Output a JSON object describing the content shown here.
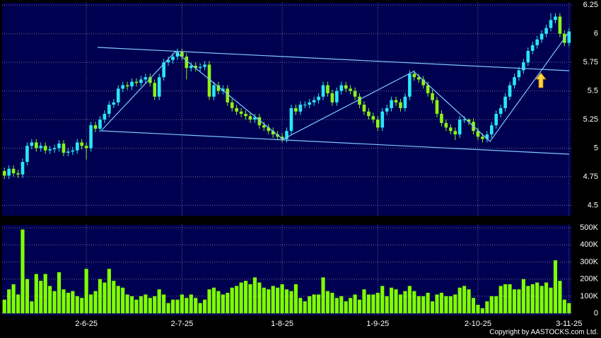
{
  "chart_data": [
    {
      "type": "candlestick",
      "categories": [
        null,
        null,
        null,
        null,
        null,
        null,
        null,
        null,
        null,
        null,
        null,
        null,
        null,
        null,
        null,
        null,
        null,
        null,
        "2-6-25",
        null,
        null,
        null,
        null,
        null,
        null,
        null,
        null,
        null,
        null,
        null,
        null,
        null,
        null,
        null,
        null,
        null,
        null,
        null,
        null,
        "2-7-25",
        null,
        null,
        null,
        null,
        null,
        null,
        null,
        null,
        null,
        null,
        null,
        null,
        null,
        null,
        null,
        null,
        null,
        null,
        null,
        null,
        null,
        "1-8-25",
        null,
        null,
        null,
        null,
        null,
        null,
        null,
        null,
        null,
        null,
        null,
        null,
        null,
        null,
        null,
        null,
        null,
        null,
        null,
        null,
        "1-9-25",
        null,
        null,
        null,
        null,
        null,
        null,
        null,
        null,
        null,
        null,
        null,
        null,
        null,
        null,
        null,
        null,
        null,
        null,
        null,
        null,
        null,
        "2-10-25",
        null,
        null,
        null,
        null,
        null,
        null,
        null,
        null,
        null,
        null,
        null,
        null,
        null,
        null,
        null,
        null,
        null,
        null,
        null,
        "3-11-25"
      ],
      "open": [
        4.8,
        4.76,
        4.82,
        4.78,
        4.77,
        4.88,
        5.02,
        5.05,
        5.0,
        5.02,
        4.98,
        4.99,
        5.0,
        5.04,
        4.96,
        4.97,
        4.98,
        5.05,
        5.02,
        5.0,
        5.2,
        5.17,
        5.25,
        5.3,
        5.38,
        5.4,
        5.52,
        5.55,
        5.54,
        5.58,
        5.57,
        5.6,
        5.62,
        5.57,
        5.45,
        5.62,
        5.75,
        5.77,
        5.8,
        5.84,
        5.8,
        5.7,
        5.72,
        5.7,
        5.71,
        5.73,
        5.45,
        5.55,
        5.5,
        5.52,
        5.4,
        5.35,
        5.32,
        5.3,
        5.28,
        5.25,
        5.27,
        5.2,
        5.18,
        5.15,
        5.12,
        5.1,
        5.08,
        5.15,
        5.35,
        5.32,
        5.38,
        5.38,
        5.4,
        5.42,
        5.45,
        5.55,
        5.48,
        5.4,
        5.5,
        5.55,
        5.52,
        5.5,
        5.45,
        5.38,
        5.32,
        5.28,
        5.25,
        5.18,
        5.32,
        5.35,
        5.42,
        5.4,
        5.35,
        5.45,
        5.65,
        5.62,
        5.6,
        5.55,
        5.48,
        5.42,
        5.3,
        5.22,
        5.18,
        5.15,
        5.12,
        5.25,
        5.25,
        5.23,
        5.15,
        5.1,
        5.08,
        5.12,
        5.2,
        5.3,
        5.35,
        5.45,
        5.55,
        5.62,
        5.68,
        5.75,
        5.85,
        5.9,
        5.95,
        6.0,
        6.05,
        6.12,
        6.15,
        6.0,
        5.92
      ],
      "high": [
        4.83,
        4.85,
        4.85,
        4.81,
        4.91,
        5.05,
        5.08,
        5.08,
        5.05,
        5.05,
        5.02,
        5.03,
        5.07,
        5.07,
        5.0,
        5.01,
        5.08,
        5.08,
        5.05,
        5.23,
        5.23,
        5.28,
        5.33,
        5.41,
        5.43,
        5.55,
        5.58,
        5.58,
        5.61,
        5.61,
        5.63,
        5.65,
        5.65,
        5.6,
        5.65,
        5.78,
        5.8,
        5.83,
        5.87,
        5.87,
        5.83,
        5.75,
        5.75,
        5.74,
        5.76,
        5.76,
        5.58,
        5.58,
        5.55,
        5.55,
        5.43,
        5.38,
        5.35,
        5.33,
        5.31,
        5.3,
        5.3,
        5.23,
        5.21,
        5.18,
        5.15,
        5.13,
        5.18,
        5.38,
        5.38,
        5.41,
        5.41,
        5.43,
        5.45,
        5.48,
        5.58,
        5.58,
        5.51,
        5.53,
        5.58,
        5.58,
        5.55,
        5.53,
        5.48,
        5.41,
        5.35,
        5.31,
        5.28,
        5.35,
        5.38,
        5.45,
        5.45,
        5.43,
        5.48,
        5.68,
        5.68,
        5.65,
        5.63,
        5.58,
        5.51,
        5.45,
        5.33,
        5.25,
        5.21,
        5.18,
        5.28,
        5.28,
        5.26,
        5.26,
        5.18,
        5.13,
        5.15,
        5.23,
        5.33,
        5.38,
        5.48,
        5.58,
        5.65,
        5.71,
        5.78,
        5.88,
        5.93,
        5.98,
        6.03,
        6.08,
        6.18,
        6.18,
        6.18,
        6.03,
        6.05
      ],
      "low": [
        4.73,
        4.73,
        4.75,
        4.74,
        4.74,
        4.85,
        4.99,
        4.97,
        4.97,
        4.95,
        4.95,
        4.96,
        4.97,
        4.93,
        4.93,
        4.94,
        4.95,
        4.99,
        4.9,
        4.97,
        5.14,
        5.14,
        5.22,
        5.27,
        5.35,
        5.37,
        5.49,
        5.51,
        5.51,
        5.54,
        5.54,
        5.57,
        5.54,
        5.42,
        5.42,
        5.59,
        5.72,
        5.74,
        5.77,
        5.77,
        5.6,
        5.67,
        5.67,
        5.67,
        5.68,
        5.42,
        5.42,
        5.47,
        5.47,
        5.37,
        5.32,
        5.29,
        5.27,
        5.25,
        5.22,
        5.22,
        5.17,
        5.15,
        5.12,
        5.09,
        5.07,
        5.05,
        5.05,
        5.12,
        5.29,
        5.29,
        5.35,
        5.35,
        5.37,
        5.39,
        5.42,
        5.45,
        5.37,
        5.37,
        5.47,
        5.49,
        5.47,
        5.42,
        5.35,
        5.29,
        5.25,
        5.22,
        5.15,
        5.15,
        5.29,
        5.32,
        5.37,
        5.32,
        5.32,
        5.42,
        5.59,
        5.57,
        5.52,
        5.45,
        5.39,
        5.27,
        5.19,
        5.15,
        5.12,
        5.07,
        5.09,
        5.22,
        5.2,
        5.12,
        5.07,
        5.05,
        5.05,
        5.09,
        5.17,
        5.27,
        5.32,
        5.42,
        5.52,
        5.59,
        5.65,
        5.72,
        5.82,
        5.87,
        5.92,
        5.97,
        6.02,
        6.09,
        5.97,
        5.89,
        5.89
      ],
      "close": [
        4.76,
        4.82,
        4.78,
        4.77,
        4.88,
        5.02,
        5.05,
        5.0,
        5.02,
        4.98,
        4.99,
        5.0,
        5.04,
        4.96,
        4.97,
        4.98,
        5.05,
        5.02,
        5.0,
        5.2,
        5.17,
        5.25,
        5.3,
        5.38,
        5.4,
        5.52,
        5.55,
        5.54,
        5.58,
        5.57,
        5.6,
        5.62,
        5.57,
        5.45,
        5.62,
        5.75,
        5.77,
        5.8,
        5.84,
        5.8,
        5.7,
        5.72,
        5.7,
        5.71,
        5.73,
        5.45,
        5.55,
        5.5,
        5.52,
        5.4,
        5.35,
        5.32,
        5.3,
        5.28,
        5.25,
        5.27,
        5.2,
        5.18,
        5.15,
        5.12,
        5.1,
        5.08,
        5.15,
        5.35,
        5.32,
        5.38,
        5.38,
        5.4,
        5.42,
        5.45,
        5.55,
        5.48,
        5.4,
        5.5,
        5.55,
        5.52,
        5.5,
        5.45,
        5.38,
        5.32,
        5.28,
        5.25,
        5.18,
        5.32,
        5.35,
        5.42,
        5.4,
        5.35,
        5.45,
        5.65,
        5.62,
        5.6,
        5.55,
        5.48,
        5.42,
        5.3,
        5.22,
        5.18,
        5.15,
        5.12,
        5.25,
        5.25,
        5.23,
        5.15,
        5.1,
        5.08,
        5.12,
        5.2,
        5.3,
        5.35,
        5.45,
        5.55,
        5.62,
        5.68,
        5.75,
        5.85,
        5.9,
        5.95,
        6.0,
        6.05,
        6.12,
        6.15,
        6.0,
        5.92,
        6.02
      ],
      "up_color": "#29e6f5",
      "down_color": "#8cf218",
      "ylim": [
        4.41,
        6.27
      ],
      "yticks": [
        4.5,
        4.75,
        5,
        5.25,
        5.5,
        5.75,
        6,
        6.25
      ],
      "grid": true
    },
    {
      "type": "bar",
      "values": [
        80000,
        140000,
        170000,
        110000,
        490000,
        200000,
        70000,
        230000,
        190000,
        230000,
        160000,
        130000,
        240000,
        140000,
        120000,
        130000,
        100000,
        90000,
        260000,
        110000,
        130000,
        200000,
        180000,
        260000,
        190000,
        160000,
        150000,
        110000,
        100000,
        80000,
        100000,
        110000,
        90000,
        100000,
        140000,
        110000,
        60000,
        80000,
        80000,
        110000,
        90000,
        110000,
        90000,
        60000,
        80000,
        140000,
        150000,
        130000,
        110000,
        120000,
        150000,
        160000,
        180000,
        190000,
        170000,
        210000,
        180000,
        150000,
        140000,
        160000,
        150000,
        170000,
        140000,
        130000,
        170000,
        90000,
        70000,
        100000,
        110000,
        110000,
        210000,
        130000,
        120000,
        90000,
        100000,
        70000,
        90000,
        110000,
        80000,
        140000,
        110000,
        110000,
        120000,
        160000,
        100000,
        150000,
        140000,
        110000,
        130000,
        160000,
        130000,
        100000,
        100000,
        120000,
        70000,
        110000,
        120000,
        100000,
        100000,
        110000,
        150000,
        160000,
        140000,
        90000,
        50000,
        30000,
        70000,
        100000,
        100000,
        160000,
        170000,
        170000,
        140000,
        140000,
        200000,
        160000,
        170000,
        180000,
        160000,
        180000,
        150000,
        310000,
        190000,
        80000,
        60000
      ],
      "color": "#80ff00",
      "ylim": [
        -12000,
        517000
      ],
      "yticks": [
        0,
        {
          "value": 100000,
          "label": "100K"
        },
        {
          "value": 200000,
          "label": "200K"
        },
        {
          "value": 300000,
          "label": "300K"
        },
        {
          "value": 400000,
          "label": "400K"
        },
        {
          "value": 500000,
          "label": "500K"
        }
      ],
      "grid": true,
      "source": "Copyright by AASTOCKS.com Ltd."
    }
  ]
}
